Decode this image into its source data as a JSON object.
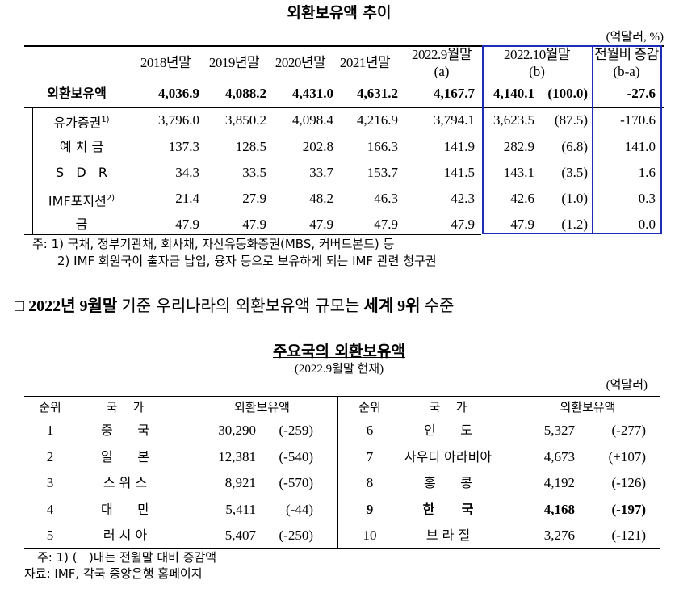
{
  "table1": {
    "title": "외환보유액 추이",
    "unit": "(억달러, %)",
    "columns": [
      {
        "label": "2018년말"
      },
      {
        "label": "2019년말"
      },
      {
        "label": "2020년말"
      },
      {
        "label": "2021년말"
      },
      {
        "label": "2022.9월말",
        "sub": "(a)"
      },
      {
        "label": "2022.10월말",
        "sub": "(b)"
      },
      {
        "label": "전월비 증감",
        "sub": "(b-a)"
      }
    ],
    "rows": [
      {
        "label": "외환보유액",
        "values": [
          "4,036.9",
          "4,088.2",
          "4,431.0",
          "4,631.2",
          "4,167.7",
          "4,140.1",
          "(100.0)",
          "-27.6"
        ]
      },
      {
        "label": "유가증권",
        "note": "1)",
        "values": [
          "3,796.0",
          "3,850.2",
          "4,098.4",
          "4,216.9",
          "3,794.1",
          "3,623.5",
          "(87.5)",
          "-170.6"
        ]
      },
      {
        "label": "예 치 금",
        "values": [
          "137.3",
          "128.5",
          "202.8",
          "166.3",
          "141.9",
          "282.9",
          "(6.8)",
          "141.0"
        ]
      },
      {
        "label": "S   D   R",
        "values": [
          "34.3",
          "33.5",
          "33.7",
          "153.7",
          "141.5",
          "143.1",
          "(3.5)",
          "1.6"
        ]
      },
      {
        "label": "IMF포지션",
        "note": "2)",
        "values": [
          "21.4",
          "27.9",
          "48.2",
          "46.3",
          "42.3",
          "42.6",
          "(1.0)",
          "0.3"
        ]
      },
      {
        "label": "금",
        "values": [
          "47.9",
          "47.9",
          "47.9",
          "47.9",
          "47.9",
          "47.9",
          "(1.2)",
          "0.0"
        ]
      }
    ],
    "notes": [
      "주: 1) 국채, 정부기관채, 회사채, 자산유동화증권(MBS, 커버드본드) 등",
      "2) IMF 회원국이 출자금 납입, 융자 등으로 보유하게 되는 IMF 관련 청구권"
    ]
  },
  "headline": [
    {
      "text": "□",
      "bold": false
    },
    {
      "text": "2022년 9월말",
      "bold": true
    },
    {
      "text": "기준 우리나라의 외환보유액 규모는",
      "bold": false
    },
    {
      "text": "세계 9위",
      "bold": true
    },
    {
      "text": "수준",
      "bold": false
    }
  ],
  "table2": {
    "title": "주요국의 외환보유액",
    "subtitle": "(2022.9월말 현재)",
    "unit": "(억달러)",
    "headers": [
      "순위",
      "국    가",
      "외환보유액"
    ],
    "left": [
      {
        "rank": "1",
        "country": "중      국",
        "amount": "30,290",
        "change": "(-259)"
      },
      {
        "rank": "2",
        "country": "일      본",
        "amount": "12,381",
        "change": "(-540)"
      },
      {
        "rank": "3",
        "country": "스 위 스",
        "amount": "8,921",
        "change": "(-570)"
      },
      {
        "rank": "4",
        "country": "대      만",
        "amount": "5,411",
        "change": "(-44)"
      },
      {
        "rank": "5",
        "country": "러 시 아",
        "amount": "5,407",
        "change": "(-250)"
      }
    ],
    "right": [
      {
        "rank": "6",
        "country": "인      도",
        "amount": "5,327",
        "change": "(-277)"
      },
      {
        "rank": "7",
        "country": "사우디 아라비아",
        "amount": "4,673",
        "change": "(+107)"
      },
      {
        "rank": "8",
        "country": "홍      콩",
        "amount": "4,192",
        "change": "(-126)"
      },
      {
        "rank": "9",
        "country": "한      국",
        "amount": "4,168",
        "change": "(-197)",
        "bold": true
      },
      {
        "rank": "10",
        "country": "브 라 질",
        "amount": "3,276",
        "change": "(-121)"
      }
    ],
    "notes": [
      "주: 1) (   )내는 전월말 대비 증감액",
      "자료: IMF, 각국 중앙은행 홈페이지"
    ]
  }
}
